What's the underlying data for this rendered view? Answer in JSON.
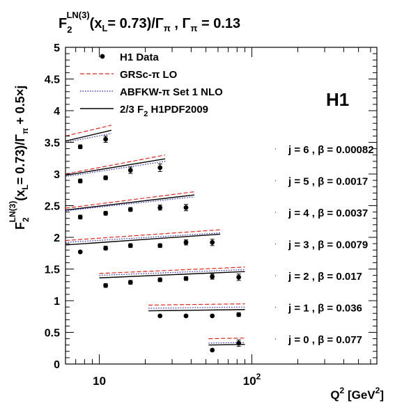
{
  "chart_data": {
    "type": "scatter",
    "title": {
      "pre": "F",
      "sub": "2",
      "sup": "LN(3)",
      "post": "(x",
      "post_sub": "L",
      "post2": "= 0.73)/Γ",
      "post2_sub": "π",
      "post3": " , Γ",
      "post3_sub": "π",
      "post4": " = 0.13"
    },
    "ylabel": {
      "pre": "F",
      "sub": "2",
      "sup": "LN(3)",
      "mid": "(x",
      "mid_sub": "L",
      "mid2": "= 0.73)/Γ",
      "mid2_sub": "π",
      "end": " + 0.5×j"
    },
    "xlabel": {
      "pre": "Q",
      "sup": "2",
      "mid": " [GeV",
      "sup2": "2",
      "end": "]"
    },
    "experiment_label": "H1",
    "x_scale": "log",
    "xlim": [
      6.0,
      660.0
    ],
    "ylim": [
      0,
      5
    ],
    "y_ticks": [
      "0",
      "0.5",
      "1",
      "1.5",
      "2",
      "2.5",
      "3",
      "3.5",
      "4",
      "4.5",
      "5"
    ],
    "y_tick_values": [
      0,
      0.5,
      1,
      1.5,
      2,
      2.5,
      3,
      3.5,
      4,
      4.5,
      5
    ],
    "x_tick_labels": [
      {
        "value": 10,
        "base": "10",
        "exp": ""
      },
      {
        "value": 100,
        "base": "10",
        "exp": "2"
      }
    ],
    "legend": {
      "position": "top-left",
      "entries": [
        {
          "label": "H1 Data",
          "style": "marker"
        },
        {
          "label": "GRSc-π LO",
          "style": "dashed",
          "color": "#e8201b"
        },
        {
          "label": "ABFKW-π Set 1 NLO",
          "style": "dotted",
          "color": "#1f1fd6"
        },
        {
          "label": "2/3 F",
          "label_sub": "2",
          "label_post": "  H1PDF2009",
          "style": "solid",
          "color": "#000000"
        }
      ]
    },
    "colors": {
      "grsc": "#e8201b",
      "abfkw": "#1f1fd6",
      "h1pdf": "#000000",
      "data": "#000000"
    },
    "series": [
      {
        "label": "j = 6 , β = 0.00082",
        "j": 6,
        "x": [
          7.5,
          11.0
        ],
        "y": [
          3.43,
          3.55
        ],
        "yerr": [
          0.03,
          0.05
        ],
        "curves": {
          "grsc": [
            [
              6.0,
              3.6
            ],
            [
              12.0,
              3.77
            ]
          ],
          "abfkw": [
            [
              6.0,
              3.5
            ],
            [
              12.0,
              3.64
            ]
          ],
          "h1pdf": [
            [
              6.0,
              3.52
            ],
            [
              12.0,
              3.69
            ]
          ]
        }
      },
      {
        "label": "j = 5 , β = 0.0017",
        "j": 5,
        "x": [
          7.5,
          11.0,
          16.0,
          25.0
        ],
        "y": [
          2.89,
          2.94,
          3.06,
          3.1
        ],
        "yerr": [
          0.03,
          0.03,
          0.05,
          0.06
        ],
        "curves": {
          "grsc": [
            [
              6.0,
              3.0
            ],
            [
              27.0,
              3.3
            ]
          ],
          "abfkw": [
            [
              6.0,
              2.96
            ],
            [
              27.0,
              3.2
            ]
          ],
          "h1pdf": [
            [
              6.0,
              2.98
            ],
            [
              27.0,
              3.24
            ]
          ]
        }
      },
      {
        "label": "j = 4 , β = 0.0037",
        "j": 4,
        "x": [
          7.5,
          11.0,
          16.0,
          25.0,
          37.0
        ],
        "y": [
          2.32,
          2.38,
          2.44,
          2.47,
          2.47
        ],
        "yerr": [
          0.03,
          0.03,
          0.03,
          0.04,
          0.05
        ],
        "curves": {
          "grsc": [
            [
              6.0,
              2.46
            ],
            [
              42.0,
              2.72
            ]
          ],
          "abfkw": [
            [
              6.0,
              2.42
            ],
            [
              42.0,
              2.64
            ]
          ],
          "h1pdf": [
            [
              6.0,
              2.43
            ],
            [
              42.0,
              2.67
            ]
          ]
        }
      },
      {
        "label": "j = 3 , β = 0.0079",
        "j": 3,
        "x": [
          7.5,
          11.0,
          16.0,
          25.0,
          37.0,
          55.0
        ],
        "y": [
          1.77,
          1.83,
          1.87,
          1.87,
          1.92,
          1.92
        ],
        "yerr": [
          0.02,
          0.03,
          0.03,
          0.03,
          0.04,
          0.05
        ],
        "curves": {
          "grsc": [
            [
              6.0,
              1.95
            ],
            [
              62.0,
              2.12
            ]
          ],
          "abfkw": [
            [
              6.0,
              1.92
            ],
            [
              62.0,
              2.07
            ]
          ],
          "h1pdf": [
            [
              6.0,
              1.88
            ],
            [
              62.0,
              2.05
            ]
          ]
        }
      },
      {
        "label": "j = 2 , β = 0.017",
        "j": 2,
        "x": [
          11.0,
          16.0,
          25.0,
          37.0,
          55.0,
          82.0
        ],
        "y": [
          1.24,
          1.29,
          1.33,
          1.35,
          1.38,
          1.37
        ],
        "yerr": [
          0.03,
          0.03,
          0.03,
          0.03,
          0.04,
          0.05
        ],
        "curves": {
          "grsc": [
            [
              10.0,
              1.43
            ],
            [
              90.0,
              1.53
            ]
          ],
          "abfkw": [
            [
              10.0,
              1.4
            ],
            [
              90.0,
              1.49
            ]
          ],
          "h1pdf": [
            [
              10.0,
              1.36
            ],
            [
              90.0,
              1.46
            ]
          ]
        }
      },
      {
        "label": "j = 1 , β = 0.036",
        "j": 1,
        "x": [
          25.0,
          37.0,
          55.0,
          82.0
        ],
        "y": [
          0.76,
          0.76,
          0.76,
          0.78
        ],
        "yerr": [
          0.02,
          0.02,
          0.02,
          0.03
        ],
        "curves": {
          "grsc": [
            [
              21.0,
              0.93
            ],
            [
              90.0,
              0.95
            ]
          ],
          "abfkw": [
            [
              21.0,
              0.88
            ],
            [
              90.0,
              0.9
            ]
          ],
          "h1pdf": [
            [
              21.0,
              0.84
            ],
            [
              90.0,
              0.86
            ]
          ]
        }
      },
      {
        "label": "j = 0 , β = 0.077",
        "j": 0,
        "x": [
          55.0,
          82.0
        ],
        "y": [
          0.22,
          0.33
        ],
        "yerr": [
          0.02,
          0.05
        ],
        "curves": {
          "grsc": [
            [
              52.0,
              0.4
            ],
            [
              90.0,
              0.41
            ]
          ],
          "abfkw": [
            [
              52.0,
              0.33
            ],
            [
              90.0,
              0.34
            ]
          ],
          "h1pdf": [
            [
              52.0,
              0.3
            ],
            [
              90.0,
              0.31
            ]
          ]
        }
      }
    ]
  }
}
